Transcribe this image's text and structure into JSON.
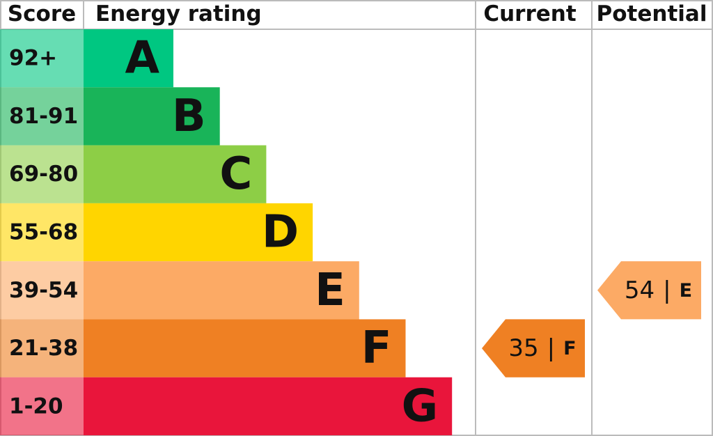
{
  "chart_data": {
    "type": "epc",
    "headers": [
      "Score",
      "Energy rating",
      "Current",
      "Potential"
    ],
    "bands": [
      {
        "range": "92+",
        "letter": "A",
        "color": "#00c781"
      },
      {
        "range": "81-91",
        "letter": "B",
        "color": "#19b459"
      },
      {
        "range": "69-80",
        "letter": "C",
        "color": "#8dce46"
      },
      {
        "range": "55-68",
        "letter": "D",
        "color": "#ffd500"
      },
      {
        "range": "39-54",
        "letter": "E",
        "color": "#fcaa65"
      },
      {
        "range": "21-38",
        "letter": "F",
        "color": "#ef8023"
      },
      {
        "range": "1-20",
        "letter": "G",
        "color": "#e9153b"
      }
    ],
    "separator": "|",
    "current": {
      "score": 35,
      "letter": "F"
    },
    "potential": {
      "score": 54,
      "letter": "E"
    }
  }
}
